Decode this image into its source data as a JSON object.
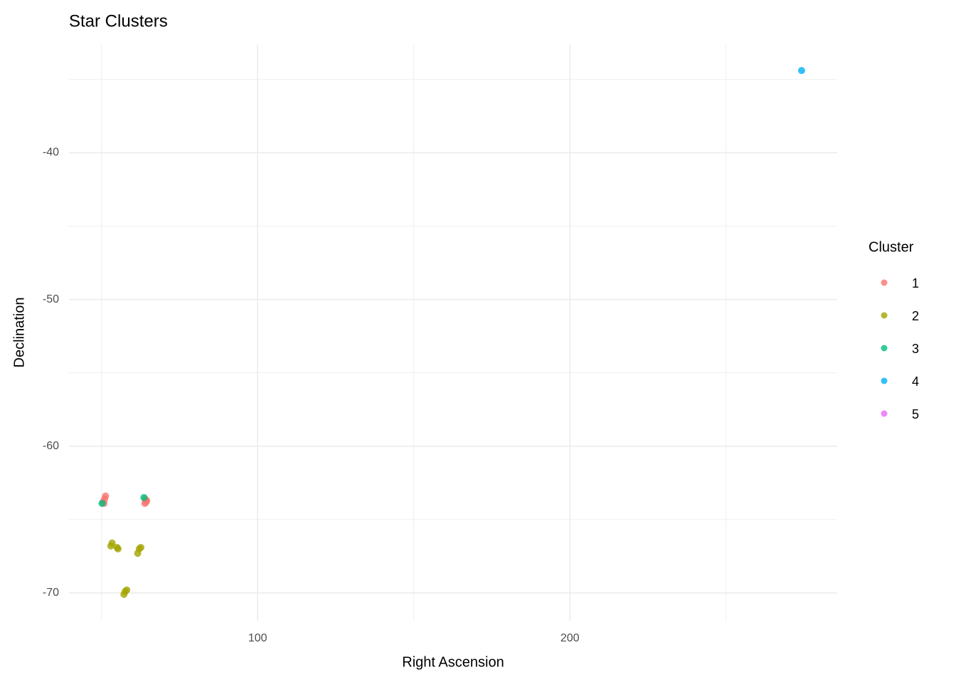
{
  "chart_data": {
    "type": "scatter",
    "title": "Star Clusters",
    "x_label": "Right Ascension",
    "y_label": "Declination",
    "legend_title": "Cluster",
    "legend_position": "right",
    "grid": true,
    "xlim": [
      39.6,
      285.6
    ],
    "xticks": [
      100,
      200
    ],
    "x_minor_ticks": [
      50,
      150,
      250
    ],
    "ylim": [
      -71.9,
      -32.6
    ],
    "yticks": [
      -40,
      -50,
      -60,
      -70
    ],
    "y_minor_ticks": [
      -35,
      -45,
      -55,
      -65
    ],
    "series": [
      {
        "name": "1",
        "color": "#F8766D",
        "x": [
          50.5,
          51.0,
          51.3,
          50.8,
          64.0,
          64.3,
          64.5,
          63.9
        ],
        "y": [
          -63.8,
          -63.6,
          -63.4,
          -63.9,
          -63.6,
          -63.8,
          -63.7,
          -63.9
        ]
      },
      {
        "name": "2",
        "color": "#A3A500",
        "x": [
          53.0,
          53.4,
          55.0,
          55.3,
          62.1,
          62.6,
          61.6,
          57.2,
          57.6,
          58.1
        ],
        "y": [
          -66.8,
          -66.6,
          -66.9,
          -67.0,
          -67.0,
          -66.9,
          -67.3,
          -70.1,
          -69.9,
          -69.8
        ]
      },
      {
        "name": "3",
        "color": "#00BF7D",
        "x": [
          63.6,
          50.2
        ],
        "y": [
          -63.5,
          -63.9
        ]
      },
      {
        "name": "4",
        "color": "#00B0F6",
        "x": [
          274.2
        ],
        "y": [
          -34.4
        ]
      },
      {
        "name": "5",
        "color": "#E76BF3",
        "x": [],
        "y": []
      }
    ]
  }
}
